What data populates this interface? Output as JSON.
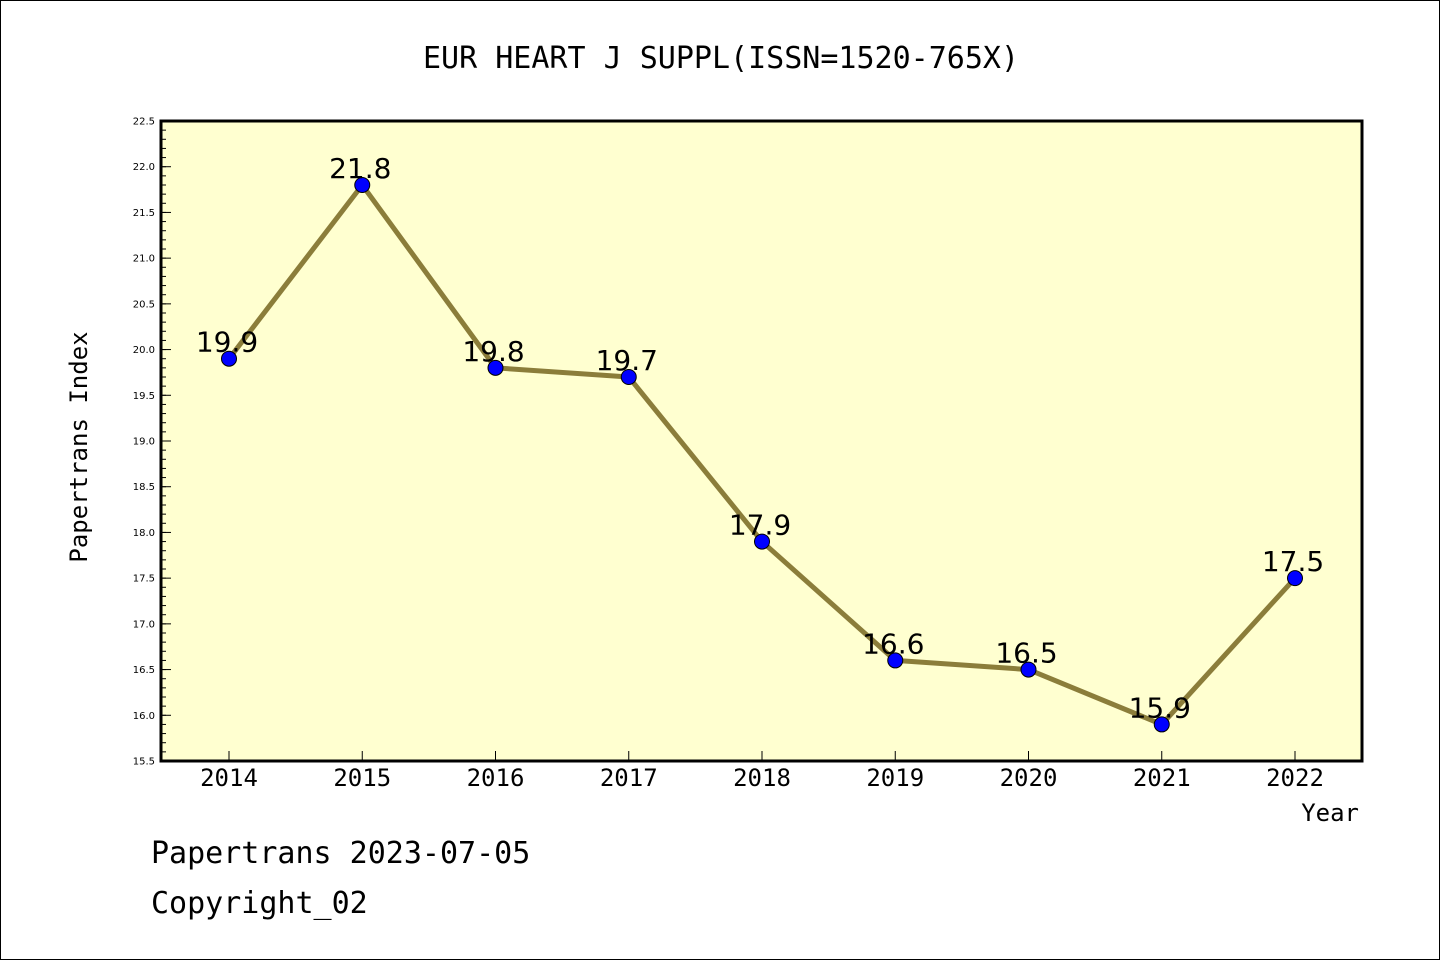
{
  "chart_data": {
    "type": "line",
    "title": "EUR HEART J SUPPL(ISSN=1520-765X)",
    "xlabel": "Year",
    "ylabel": "Papertrans Index",
    "categories": [
      "2014",
      "2015",
      "2016",
      "2017",
      "2018",
      "2019",
      "2020",
      "2021",
      "2022"
    ],
    "series": [
      {
        "values": [
          19.9,
          21.8,
          19.8,
          19.7,
          17.9,
          16.6,
          16.5,
          15.9,
          17.5
        ],
        "data_labels": [
          "19.9",
          "21.8",
          "19.8",
          "19.7",
          "17.9",
          "16.6",
          "16.5",
          "15.9",
          "17.5"
        ],
        "line_color": "#8b7d3a",
        "marker_color": "#0000ff"
      }
    ],
    "ylim": [
      15.5,
      22.5
    ],
    "yticks": [
      "15.5",
      "16.0",
      "16.5",
      "17.0",
      "17.5",
      "18.0",
      "18.5",
      "19.0",
      "19.5",
      "20.0",
      "20.5",
      "21.0",
      "21.5",
      "22.0",
      "22.5"
    ],
    "grid": false,
    "plot_background": "#ffffd0"
  },
  "footer": {
    "line1": "Papertrans 2023-07-05",
    "line2": "Copyright_02"
  }
}
